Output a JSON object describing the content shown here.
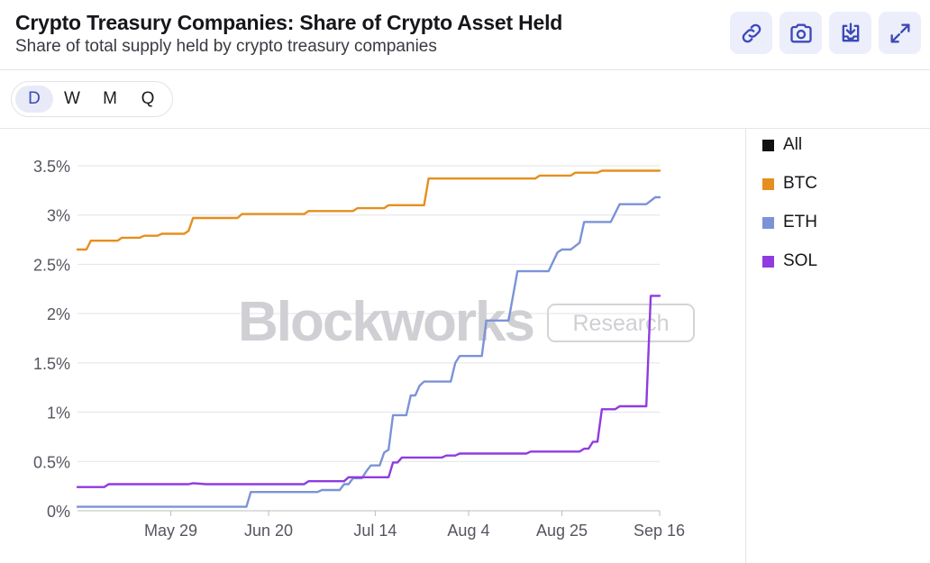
{
  "header": {
    "title": "Crypto Treasury Companies: Share of Crypto Asset Held",
    "subtitle": "Share of total supply held by crypto treasury companies"
  },
  "toolbar": {
    "buttons": [
      {
        "icon": "link-icon"
      },
      {
        "icon": "camera-icon"
      },
      {
        "icon": "download-icon"
      },
      {
        "icon": "expand-icon"
      }
    ]
  },
  "range": {
    "options": [
      "D",
      "W",
      "M",
      "Q"
    ],
    "selected": "D"
  },
  "watermark": {
    "brand": "Blockworks",
    "tag": "Research"
  },
  "legend": {
    "items": [
      {
        "label": "All",
        "color": "#111111"
      },
      {
        "label": "BTC",
        "color": "#e58f1e"
      },
      {
        "label": "ETH",
        "color": "#7b93d6"
      },
      {
        "label": "SOL",
        "color": "#8f3be0"
      }
    ]
  },
  "chart_data": {
    "type": "line",
    "x_type": "date",
    "x_range": [
      "2025-05-08",
      "2025-09-16"
    ],
    "x_ticks": [
      {
        "date": "2025-05-29",
        "label": "May 29"
      },
      {
        "date": "2025-06-20",
        "label": "Jun 20"
      },
      {
        "date": "2025-07-14",
        "label": "Jul 14"
      },
      {
        "date": "2025-08-04",
        "label": "Aug 4"
      },
      {
        "date": "2025-08-25",
        "label": "Aug 25"
      },
      {
        "date": "2025-09-16",
        "label": "Sep 16"
      }
    ],
    "ylim": [
      0,
      3.5
    ],
    "y_ticks": [
      {
        "value": 0,
        "label": "0%"
      },
      {
        "value": 0.5,
        "label": "0.5%"
      },
      {
        "value": 1,
        "label": "1%"
      },
      {
        "value": 1.5,
        "label": "1.5%"
      },
      {
        "value": 2,
        "label": "2%"
      },
      {
        "value": 2.5,
        "label": "2.5%"
      },
      {
        "value": 3,
        "label": "3%"
      },
      {
        "value": 3.5,
        "label": "3.5%"
      }
    ],
    "grid": true,
    "step": true,
    "legend_position": "right",
    "series": [
      {
        "name": "BTC",
        "color": "#e58f1e",
        "points": [
          [
            "2025-05-08",
            2.65
          ],
          [
            "2025-05-10",
            2.65
          ],
          [
            "2025-05-11",
            2.74
          ],
          [
            "2025-05-17",
            2.74
          ],
          [
            "2025-05-18",
            2.77
          ],
          [
            "2025-05-22",
            2.77
          ],
          [
            "2025-05-23",
            2.79
          ],
          [
            "2025-05-26",
            2.79
          ],
          [
            "2025-05-27",
            2.81
          ],
          [
            "2025-06-01",
            2.81
          ],
          [
            "2025-06-02",
            2.84
          ],
          [
            "2025-06-03",
            2.97
          ],
          [
            "2025-06-13",
            2.97
          ],
          [
            "2025-06-14",
            3.01
          ],
          [
            "2025-06-28",
            3.01
          ],
          [
            "2025-06-29",
            3.04
          ],
          [
            "2025-07-09",
            3.04
          ],
          [
            "2025-07-10",
            3.07
          ],
          [
            "2025-07-16",
            3.07
          ],
          [
            "2025-07-17",
            3.1
          ],
          [
            "2025-07-25",
            3.1
          ],
          [
            "2025-07-26",
            3.37
          ],
          [
            "2025-08-19",
            3.37
          ],
          [
            "2025-08-20",
            3.4
          ],
          [
            "2025-08-27",
            3.4
          ],
          [
            "2025-08-28",
            3.43
          ],
          [
            "2025-09-02",
            3.43
          ],
          [
            "2025-09-03",
            3.45
          ],
          [
            "2025-09-17",
            3.45
          ]
        ]
      },
      {
        "name": "ETH",
        "color": "#7b93d6",
        "points": [
          [
            "2025-05-08",
            0.04
          ],
          [
            "2025-06-15",
            0.04
          ],
          [
            "2025-06-16",
            0.19
          ],
          [
            "2025-07-01",
            0.19
          ],
          [
            "2025-07-02",
            0.21
          ],
          [
            "2025-07-06",
            0.21
          ],
          [
            "2025-07-07",
            0.27
          ],
          [
            "2025-07-08",
            0.27
          ],
          [
            "2025-07-09",
            0.33
          ],
          [
            "2025-07-11",
            0.33
          ],
          [
            "2025-07-12",
            0.4
          ],
          [
            "2025-07-13",
            0.46
          ],
          [
            "2025-07-15",
            0.46
          ],
          [
            "2025-07-16",
            0.59
          ],
          [
            "2025-07-17",
            0.62
          ],
          [
            "2025-07-18",
            0.97
          ],
          [
            "2025-07-21",
            0.97
          ],
          [
            "2025-07-22",
            1.17
          ],
          [
            "2025-07-23",
            1.17
          ],
          [
            "2025-07-24",
            1.27
          ],
          [
            "2025-07-25",
            1.31
          ],
          [
            "2025-07-31",
            1.31
          ],
          [
            "2025-08-01",
            1.5
          ],
          [
            "2025-08-02",
            1.57
          ],
          [
            "2025-08-07",
            1.57
          ],
          [
            "2025-08-08",
            1.93
          ],
          [
            "2025-08-13",
            1.93
          ],
          [
            "2025-08-14",
            2.18
          ],
          [
            "2025-08-15",
            2.43
          ],
          [
            "2025-08-22",
            2.43
          ],
          [
            "2025-08-24",
            2.62
          ],
          [
            "2025-08-25",
            2.65
          ],
          [
            "2025-08-27",
            2.65
          ],
          [
            "2025-08-29",
            2.72
          ],
          [
            "2025-08-30",
            2.93
          ],
          [
            "2025-09-05",
            2.93
          ],
          [
            "2025-09-07",
            3.11
          ],
          [
            "2025-09-13",
            3.11
          ],
          [
            "2025-09-15",
            3.18
          ],
          [
            "2025-09-17",
            3.18
          ]
        ]
      },
      {
        "name": "SOL",
        "color": "#8f3be0",
        "points": [
          [
            "2025-05-08",
            0.24
          ],
          [
            "2025-05-14",
            0.24
          ],
          [
            "2025-05-15",
            0.27
          ],
          [
            "2025-06-02",
            0.27
          ],
          [
            "2025-06-03",
            0.28
          ],
          [
            "2025-06-06",
            0.27
          ],
          [
            "2025-06-28",
            0.27
          ],
          [
            "2025-06-29",
            0.3
          ],
          [
            "2025-07-07",
            0.3
          ],
          [
            "2025-07-08",
            0.34
          ],
          [
            "2025-07-17",
            0.34
          ],
          [
            "2025-07-18",
            0.49
          ],
          [
            "2025-07-19",
            0.49
          ],
          [
            "2025-07-20",
            0.54
          ],
          [
            "2025-07-29",
            0.54
          ],
          [
            "2025-07-30",
            0.56
          ],
          [
            "2025-08-01",
            0.56
          ],
          [
            "2025-08-02",
            0.58
          ],
          [
            "2025-08-17",
            0.58
          ],
          [
            "2025-08-18",
            0.6
          ],
          [
            "2025-08-29",
            0.6
          ],
          [
            "2025-08-30",
            0.63
          ],
          [
            "2025-08-31",
            0.63
          ],
          [
            "2025-09-01",
            0.7
          ],
          [
            "2025-09-02",
            0.7
          ],
          [
            "2025-09-03",
            1.03
          ],
          [
            "2025-09-06",
            1.03
          ],
          [
            "2025-09-07",
            1.06
          ],
          [
            "2025-09-12",
            1.06
          ],
          [
            "2025-09-13",
            1.06
          ],
          [
            "2025-09-14",
            2.18
          ],
          [
            "2025-09-17",
            2.18
          ]
        ]
      }
    ]
  }
}
